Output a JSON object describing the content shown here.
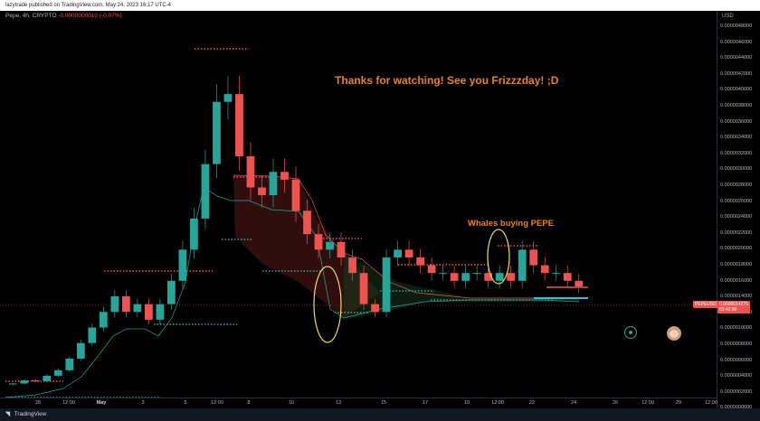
{
  "header": {
    "publish_line": "lazytrade published on TradingView.com, May 24, 2023 16:17 UTC-4",
    "symbol_info": "Pepe, 4h, CRYPTO",
    "change": "-0.0000000010 (-0.07%)"
  },
  "price_axis": {
    "currency": "USD",
    "ticks": [
      "0.0000048000",
      "0.0000046000",
      "0.0000044000",
      "0.0000042000",
      "0.0000040000",
      "0.0000038000",
      "0.0000036000",
      "0.0000034000",
      "0.0000032000",
      "0.0000030000",
      "0.0000028000",
      "0.0000026000",
      "0.0000024000",
      "0.0000022000",
      "0.0000020000",
      "0.0000018000",
      "0.0000016000",
      "0.0000014000",
      "0.0000012000",
      "0.0000010000",
      "0.0000008000",
      "0.0000006000",
      "0.0000004000",
      "0.0000002000",
      "0.0000000000"
    ],
    "last_price_symbol": "PEPEUSD",
    "last_price": "0.0000014275",
    "countdown": "03:42:58"
  },
  "time_axis": {
    "ticks": [
      {
        "label": "28",
        "bold": false
      },
      {
        "label": "12:00",
        "bold": false
      },
      {
        "label": "May",
        "bold": true
      },
      {
        "label": "3",
        "bold": false
      },
      {
        "label": "5",
        "bold": false
      },
      {
        "label": "12:00",
        "bold": false
      },
      {
        "label": "8",
        "bold": false
      },
      {
        "label": "10",
        "bold": false
      },
      {
        "label": "13",
        "bold": false
      },
      {
        "label": "15",
        "bold": false
      },
      {
        "label": "17",
        "bold": false
      },
      {
        "label": "19",
        "bold": false
      },
      {
        "label": "12:00",
        "bold": false
      },
      {
        "label": "22",
        "bold": false
      },
      {
        "label": "24",
        "bold": false
      },
      {
        "label": "26",
        "bold": false
      },
      {
        "label": "12:00",
        "bold": false
      },
      {
        "label": "29",
        "bold": false
      },
      {
        "label": "12:00",
        "bold": false
      }
    ]
  },
  "annotations": {
    "thanks": "Thanks for watching!  See you Frizzzday! ;D",
    "whales": "Whales buying PEPE"
  },
  "footer": {
    "brand": "TradingView"
  },
  "colors": {
    "up": "#26a69a",
    "down": "#ef5350",
    "annotation": "#e8841a",
    "ellipse": "#f0e04a"
  },
  "chart_data": {
    "type": "candlestick",
    "title": "",
    "ylim": [
      0,
      4.9e-06
    ],
    "candles_close": [
      1.8e-07,
      2.2e-07,
      2.1e-07,
      2.8e-07,
      3.5e-07,
      5e-07,
      7e-07,
      9e-07,
      1.1e-06,
      1.3e-06,
      1.1e-06,
      1.2e-06,
      1e-06,
      1.2e-06,
      1.5e-06,
      1.9e-06,
      2.3e-06,
      3e-06,
      3.8e-06,
      3.9e-06,
      3.1e-06,
      2.7e-06,
      2.6e-06,
      2.9e-06,
      2.8e-06,
      2.4e-06,
      2.1e-06,
      1.9e-06,
      2e-06,
      1.8e-06,
      1.6e-06,
      1.2e-06,
      1.1e-06,
      1.8e-06,
      1.9e-06,
      1.8e-06,
      1.7e-06,
      1.6e-06,
      1.6e-06,
      1.5e-06,
      1.6e-06,
      1.6e-06,
      1.5e-06,
      1.6e-06,
      1.5e-06,
      1.9e-06,
      1.7e-06,
      1.6e-06,
      1.6e-06,
      1.5e-06,
      1.4275e-06
    ]
  }
}
